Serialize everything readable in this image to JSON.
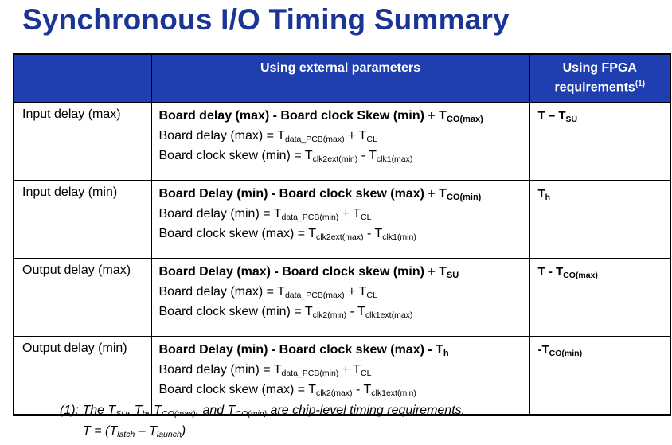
{
  "title": "Synchronous I/O Timing Summary",
  "headers": {
    "col1": "",
    "col2": "Using external parameters",
    "col3_line1": "Using FPGA",
    "col3_line2": "requirements",
    "col3_note": "(1)"
  },
  "rows": [
    {
      "label": "Input delay (max)",
      "formula_main": [
        [
          "Board delay (max) - Board clock Skew (min) + T",
          ""
        ],
        [
          "CO(max)",
          "sub"
        ]
      ],
      "formula_l2": [
        [
          "Board delay (max) = T",
          ""
        ],
        [
          "data_PCB(max)",
          "sub"
        ],
        [
          " + T",
          ""
        ],
        [
          "CL",
          "sub"
        ]
      ],
      "formula_l3": [
        [
          "Board clock skew (min) = T",
          ""
        ],
        [
          "clk2ext(min)",
          "sub"
        ],
        [
          " - T",
          ""
        ],
        [
          "clk1(max)",
          "sub"
        ]
      ],
      "fpga": [
        [
          "T – T",
          ""
        ],
        [
          "SU",
          "sub"
        ]
      ]
    },
    {
      "label": "Input delay (min)",
      "formula_main": [
        [
          "Board Delay (min) - Board clock skew (max) + T",
          ""
        ],
        [
          "CO(min)",
          "sub"
        ]
      ],
      "formula_l2": [
        [
          "Board delay (min) = T",
          ""
        ],
        [
          "data_PCB(min)",
          "sub"
        ],
        [
          " + T",
          ""
        ],
        [
          "CL",
          "sub"
        ]
      ],
      "formula_l3": [
        [
          "Board clock skew (max) = T",
          ""
        ],
        [
          "clk2ext(max)",
          "sub"
        ],
        [
          " - T",
          ""
        ],
        [
          "clk1(min)",
          "sub"
        ]
      ],
      "fpga": [
        [
          "T",
          ""
        ],
        [
          "h",
          "sub"
        ]
      ]
    },
    {
      "label": "Output delay (max)",
      "formula_main": [
        [
          "Board Delay (max) - Board clock skew (min) + T",
          ""
        ],
        [
          "SU",
          "sub"
        ]
      ],
      "formula_l2": [
        [
          "Board delay (max) = T",
          ""
        ],
        [
          "data_PCB(max)",
          "sub"
        ],
        [
          " + T",
          ""
        ],
        [
          "CL",
          "sub"
        ]
      ],
      "formula_l3": [
        [
          "Board clock skew (min) = T",
          ""
        ],
        [
          "clk2(min)",
          "sub"
        ],
        [
          " - T",
          ""
        ],
        [
          "clk1ext(max)",
          "sub"
        ]
      ],
      "fpga": [
        [
          "T - T",
          ""
        ],
        [
          "CO(max)",
          "sub"
        ]
      ]
    },
    {
      "label": "Output delay (min)",
      "formula_main": [
        [
          "Board Delay (min) - Board clock skew (max) - T",
          ""
        ],
        [
          "h",
          "sub"
        ]
      ],
      "formula_l2": [
        [
          "Board delay (min) = T",
          ""
        ],
        [
          "data_PCB(min)",
          "sub"
        ],
        [
          " + T",
          ""
        ],
        [
          "CL",
          "sub"
        ]
      ],
      "formula_l3": [
        [
          "Board clock skew (max) = T",
          ""
        ],
        [
          "clk2(max)",
          "sub"
        ],
        [
          " - T",
          ""
        ],
        [
          "clk1ext(min)",
          "sub"
        ]
      ],
      "fpga": [
        [
          "-T",
          ""
        ],
        [
          "CO(min)",
          "sub"
        ]
      ]
    }
  ],
  "footnote": [
    [
      "(1): The T",
      ""
    ],
    [
      "SU",
      "sub"
    ],
    [
      ", T",
      ""
    ],
    [
      "h",
      "sub"
    ],
    [
      ", T",
      ""
    ],
    [
      "CO(max)",
      "sub"
    ],
    [
      ", and T",
      ""
    ],
    [
      "CO(min)",
      "sub"
    ],
    [
      " are chip-level timing requirements.",
      ""
    ]
  ],
  "footnote2": [
    [
      "T = (T",
      ""
    ],
    [
      "latch",
      "sub"
    ],
    [
      " – T",
      ""
    ],
    [
      "launch",
      "sub"
    ],
    [
      ")",
      ""
    ]
  ]
}
